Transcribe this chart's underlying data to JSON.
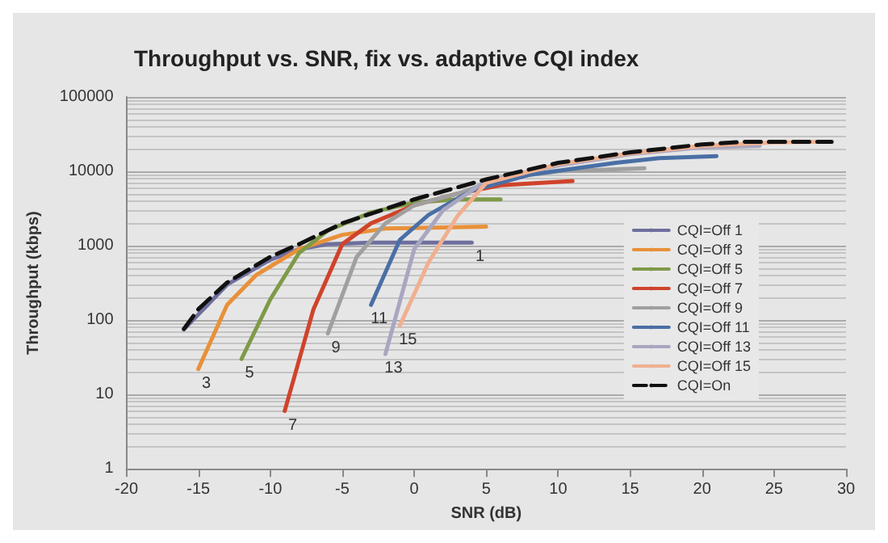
{
  "chart_data": {
    "type": "line",
    "title": "Throughput vs. SNR, fix vs. adaptive CQI index",
    "xlabel": "SNR (dB)",
    "ylabel": "Throughput (kbps)",
    "xlim": [
      -20,
      30
    ],
    "xticks": [
      -20,
      -15,
      -10,
      -5,
      0,
      5,
      10,
      15,
      20,
      25,
      30
    ],
    "ylim": [
      1,
      100000
    ],
    "yticks": [
      1,
      10,
      100,
      1000,
      10000,
      100000
    ],
    "log": "y",
    "grid": "y",
    "legend": "right",
    "marker": "none",
    "line_style": "solid",
    "series": [
      {
        "name": "CQI=Off 1",
        "color": "#6f6f9e",
        "x": [
          -16,
          -13,
          -10,
          -8,
          -6,
          -3,
          4
        ],
        "values": [
          75,
          300,
          650,
          900,
          1050,
          1100,
          1100
        ]
      },
      {
        "name": "CQI=Off 3",
        "color": "#e8913a",
        "x": [
          -15,
          -13,
          -11,
          -8,
          -5,
          -2,
          5
        ],
        "values": [
          22,
          160,
          400,
          900,
          1400,
          1700,
          1800
        ]
      },
      {
        "name": "CQI=Off 5",
        "color": "#7f9a48",
        "x": [
          -12,
          -10,
          -8,
          -6,
          -3,
          0,
          3,
          6
        ],
        "values": [
          30,
          190,
          800,
          1600,
          2800,
          3800,
          4200,
          4200
        ]
      },
      {
        "name": "CQI=Off 7",
        "color": "#d0432b",
        "x": [
          -9,
          -7,
          -5,
          -3,
          0,
          3,
          6,
          11
        ],
        "values": [
          6,
          140,
          1050,
          2000,
          3500,
          5000,
          6500,
          7400
        ]
      },
      {
        "name": "CQI=Off 9",
        "color": "#a0a0a0",
        "x": [
          -6,
          -4,
          -2,
          0,
          3,
          6,
          10,
          16
        ],
        "values": [
          66,
          710,
          2000,
          3500,
          5000,
          8000,
          10000,
          11000
        ]
      },
      {
        "name": "CQI=Off 11",
        "color": "#4a6fa5",
        "x": [
          -3,
          -1,
          1,
          4,
          8,
          14,
          17,
          21
        ],
        "values": [
          160,
          1200,
          2600,
          5500,
          9000,
          13000,
          15000,
          16000
        ]
      },
      {
        "name": "CQI=Off 13",
        "color": "#a9a6c0",
        "x": [
          -2,
          0,
          2,
          5,
          10,
          15,
          20,
          24
        ],
        "values": [
          35,
          900,
          3000,
          7500,
          12000,
          17000,
          21000,
          22000
        ]
      },
      {
        "name": "CQI=Off 15",
        "color": "#f0b090",
        "x": [
          -1,
          1,
          3,
          5,
          10,
          15,
          20,
          25,
          28
        ],
        "values": [
          84,
          600,
          2500,
          7000,
          12500,
          17500,
          22000,
          24500,
          25000
        ]
      },
      {
        "name": "CQI=On",
        "color": "#111111",
        "line_style": "dashed",
        "x": [
          -16,
          -15,
          -13,
          -10,
          -8,
          -5,
          0,
          5,
          10,
          15,
          20,
          23,
          29
        ],
        "values": [
          76,
          140,
          320,
          710,
          1050,
          2000,
          4200,
          7800,
          13000,
          18000,
          23000,
          25000,
          25000
        ]
      }
    ],
    "annotations": [
      {
        "text": "1",
        "x": 4,
        "y": 1100
      },
      {
        "text": "3",
        "x": -15,
        "y": 22
      },
      {
        "text": "5",
        "x": -12,
        "y": 30
      },
      {
        "text": "7",
        "x": -9,
        "y": 6
      },
      {
        "text": "9",
        "x": -6,
        "y": 66
      },
      {
        "text": "11",
        "x": -3,
        "y": 160
      },
      {
        "text": "13",
        "x": -2,
        "y": 35
      },
      {
        "text": "15",
        "x": -1,
        "y": 84
      }
    ]
  }
}
